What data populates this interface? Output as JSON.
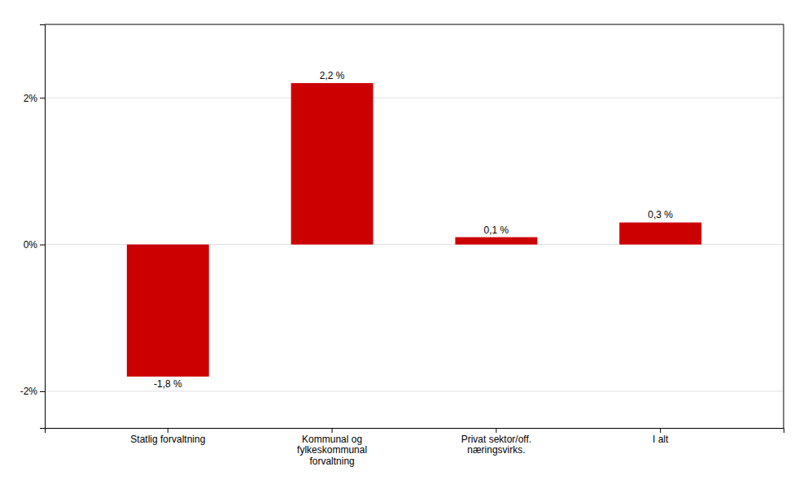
{
  "chart_data": {
    "type": "bar",
    "categories": [
      "Statlig forvaltning",
      "Kommunal og\nfylkeskommunal\nforvaltning",
      "Privat sektor/off.\nnæringsvirks.",
      "I alt"
    ],
    "values": [
      -1.8,
      2.2,
      0.1,
      0.3
    ],
    "value_labels": [
      "-1,8 %",
      "2,2 %",
      "0,1 %",
      "0,3 %"
    ],
    "data_labels": true,
    "color": "#cc0000",
    "ylim": [
      -2.5,
      3.0
    ],
    "yticks": [
      {
        "value": -2,
        "label": "-2%"
      },
      {
        "value": 0,
        "label": "0%"
      },
      {
        "value": 2,
        "label": "2%"
      }
    ],
    "grid": true
  }
}
